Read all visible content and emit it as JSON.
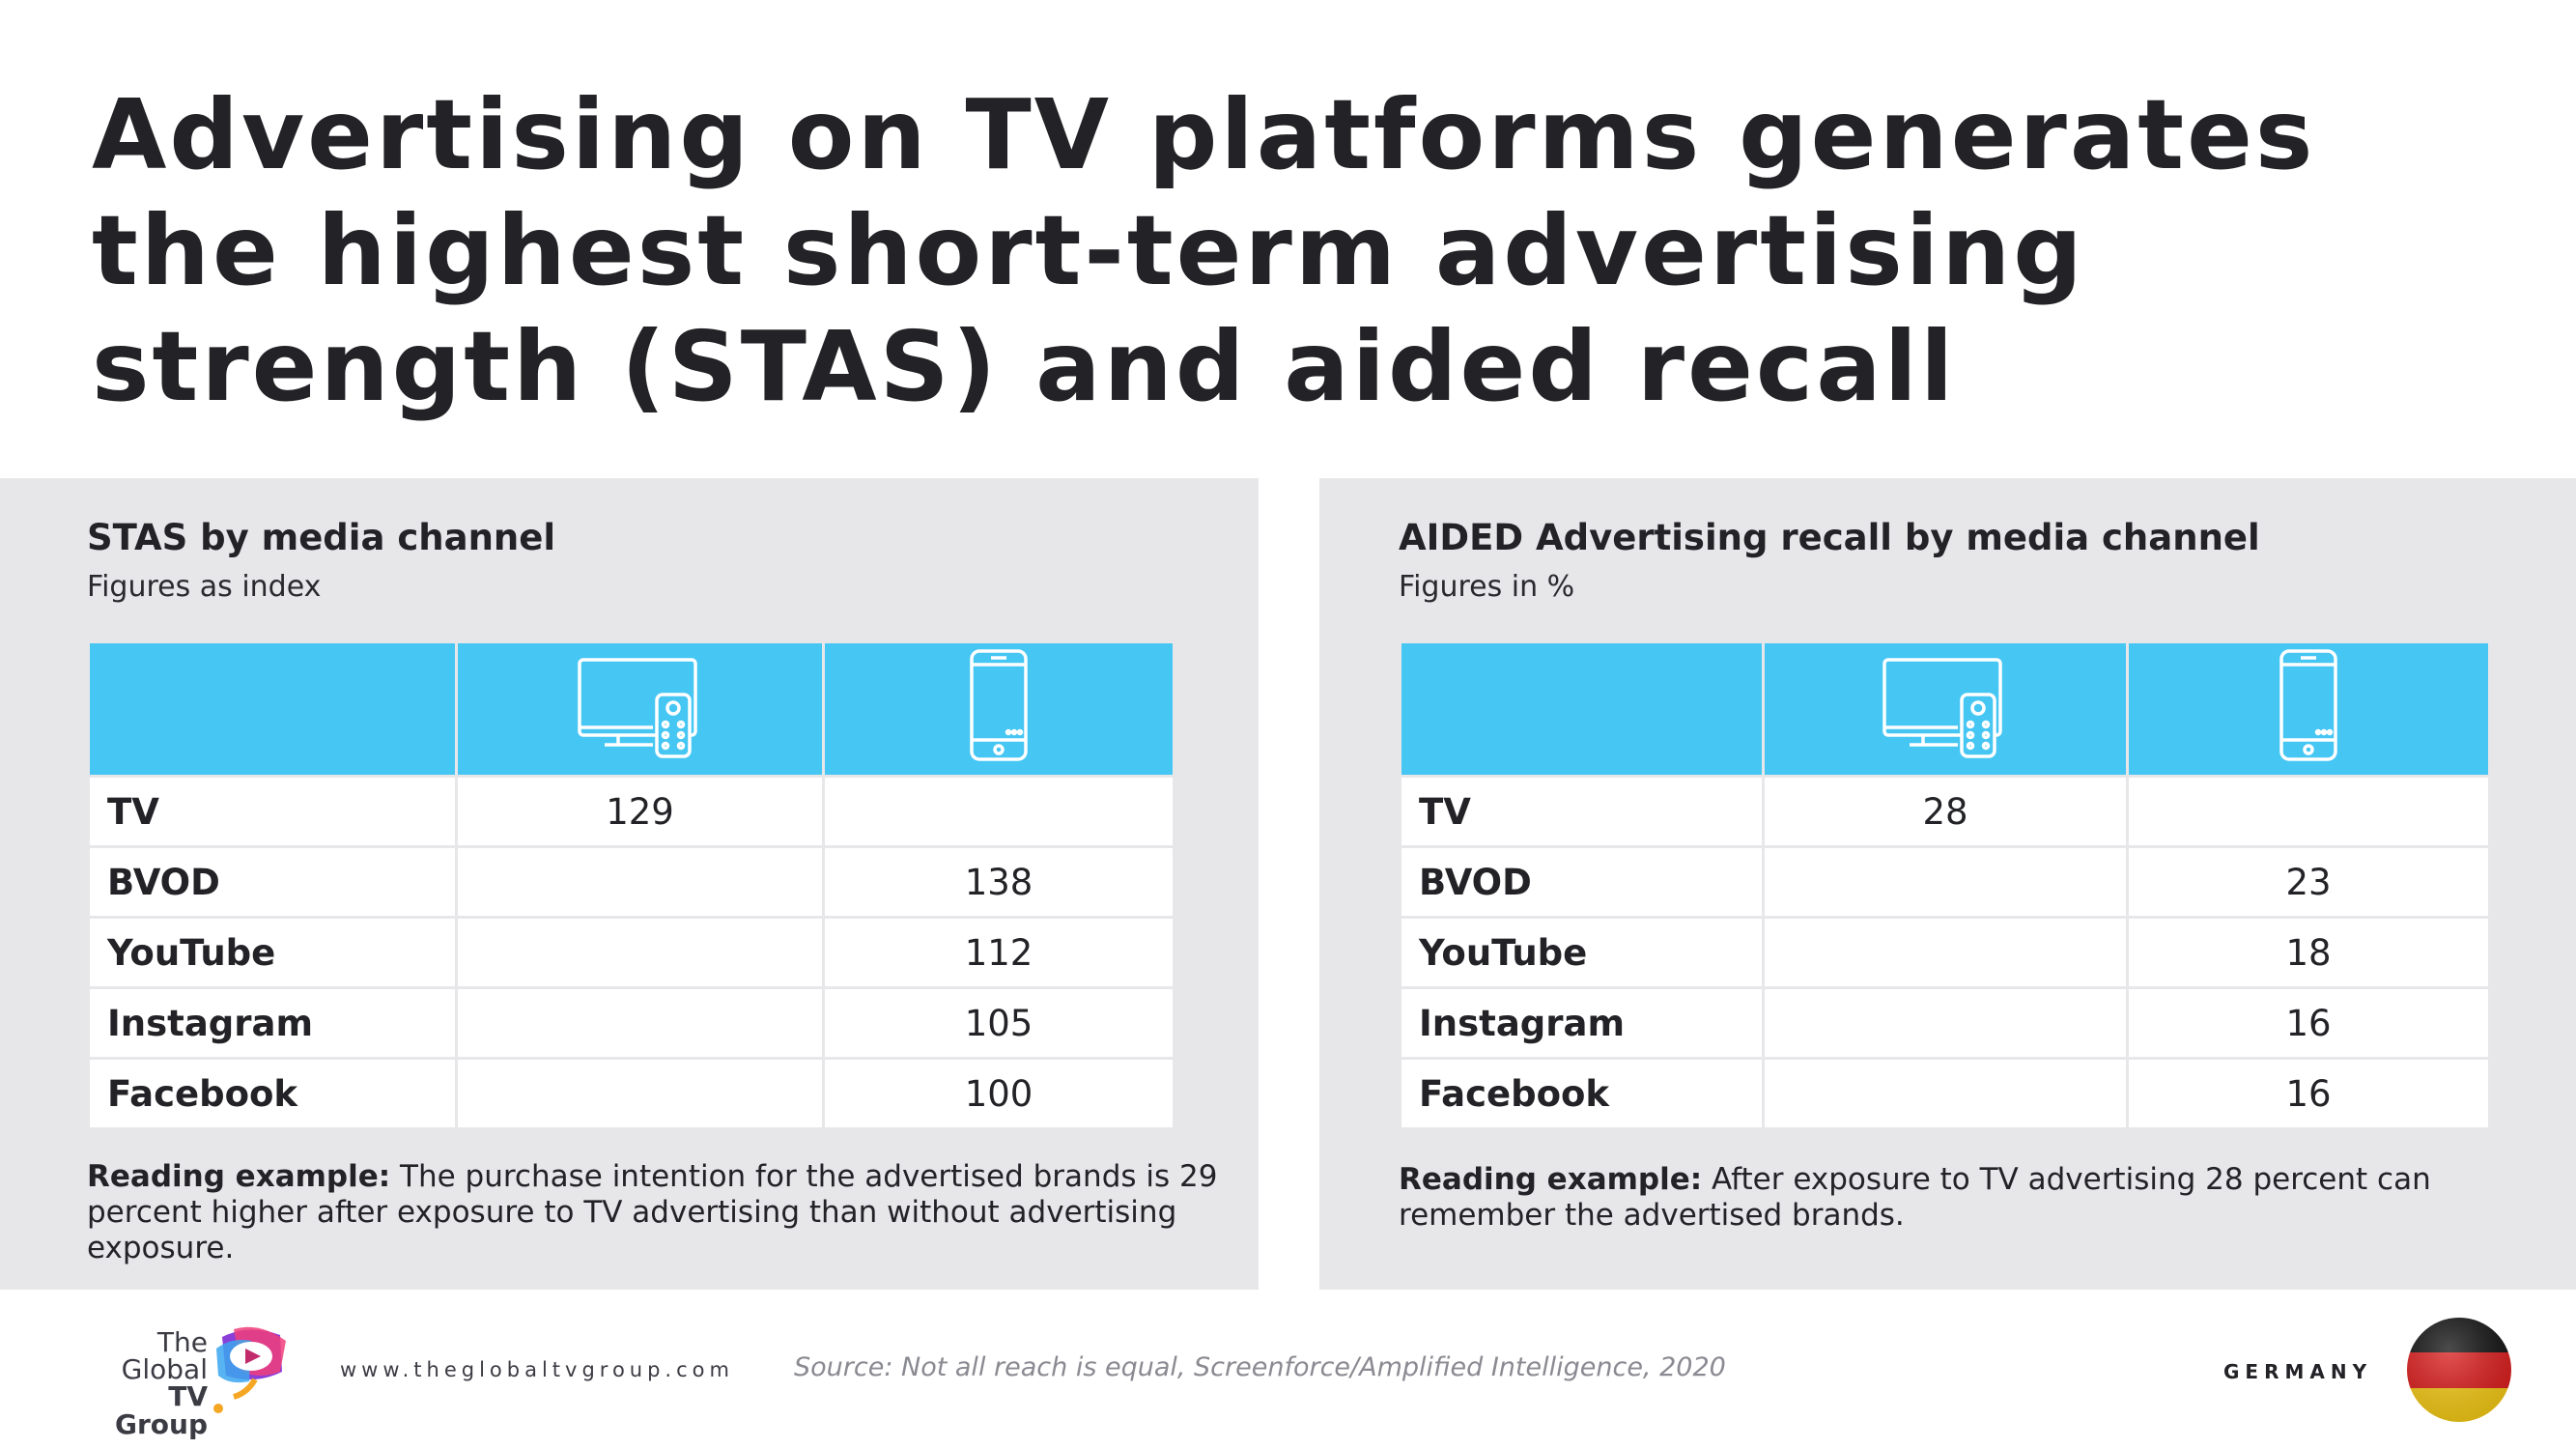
{
  "title": "Advertising on TV platforms generates the highest short-term advertising strength (STAS) and aided recall",
  "left_panel": {
    "title": "STAS by media channel",
    "subtitle": "Figures as index",
    "rows": [
      {
        "label": "TV",
        "tv": "129",
        "mobile": ""
      },
      {
        "label": "BVOD",
        "tv": "",
        "mobile": "138"
      },
      {
        "label": "YouTube",
        "tv": "",
        "mobile": "112"
      },
      {
        "label": "Instagram",
        "tv": "",
        "mobile": "105"
      },
      {
        "label": "Facebook",
        "tv": "",
        "mobile": "100"
      }
    ],
    "reading_label": "Reading example:",
    "reading_text": " The purchase intention for the advertised brands is 29 percent higher after exposure to TV advertising than without advertising exposure."
  },
  "right_panel": {
    "title": "AIDED Advertising recall by media channel",
    "subtitle": "Figures in %",
    "rows": [
      {
        "label": "TV",
        "tv": "28",
        "mobile": ""
      },
      {
        "label": "BVOD",
        "tv": "",
        "mobile": "23"
      },
      {
        "label": "YouTube",
        "tv": "",
        "mobile": "18"
      },
      {
        "label": "Instagram",
        "tv": "",
        "mobile": "16"
      },
      {
        "label": "Facebook",
        "tv": "",
        "mobile": "16"
      }
    ],
    "reading_label": "Reading example:",
    "reading_text": " After exposure to TV advertising 28 percent can remember the advertised brands."
  },
  "footer": {
    "logo_line1": "The",
    "logo_line2": "Global",
    "logo_line3": "TV Group",
    "url": "www.theglobaltvgroup.com",
    "source": "Source:  Not all reach is equal, Screenforce/Amplified Intelligence, 2020",
    "country": "GERMANY"
  },
  "colors": {
    "header_blue": "#45c6f3",
    "panel_gray": "#e7e7ea"
  },
  "icons": [
    "tv-remote-icon",
    "smartphone-icon",
    "germany-flag-icon",
    "global-tv-group-logo"
  ]
}
